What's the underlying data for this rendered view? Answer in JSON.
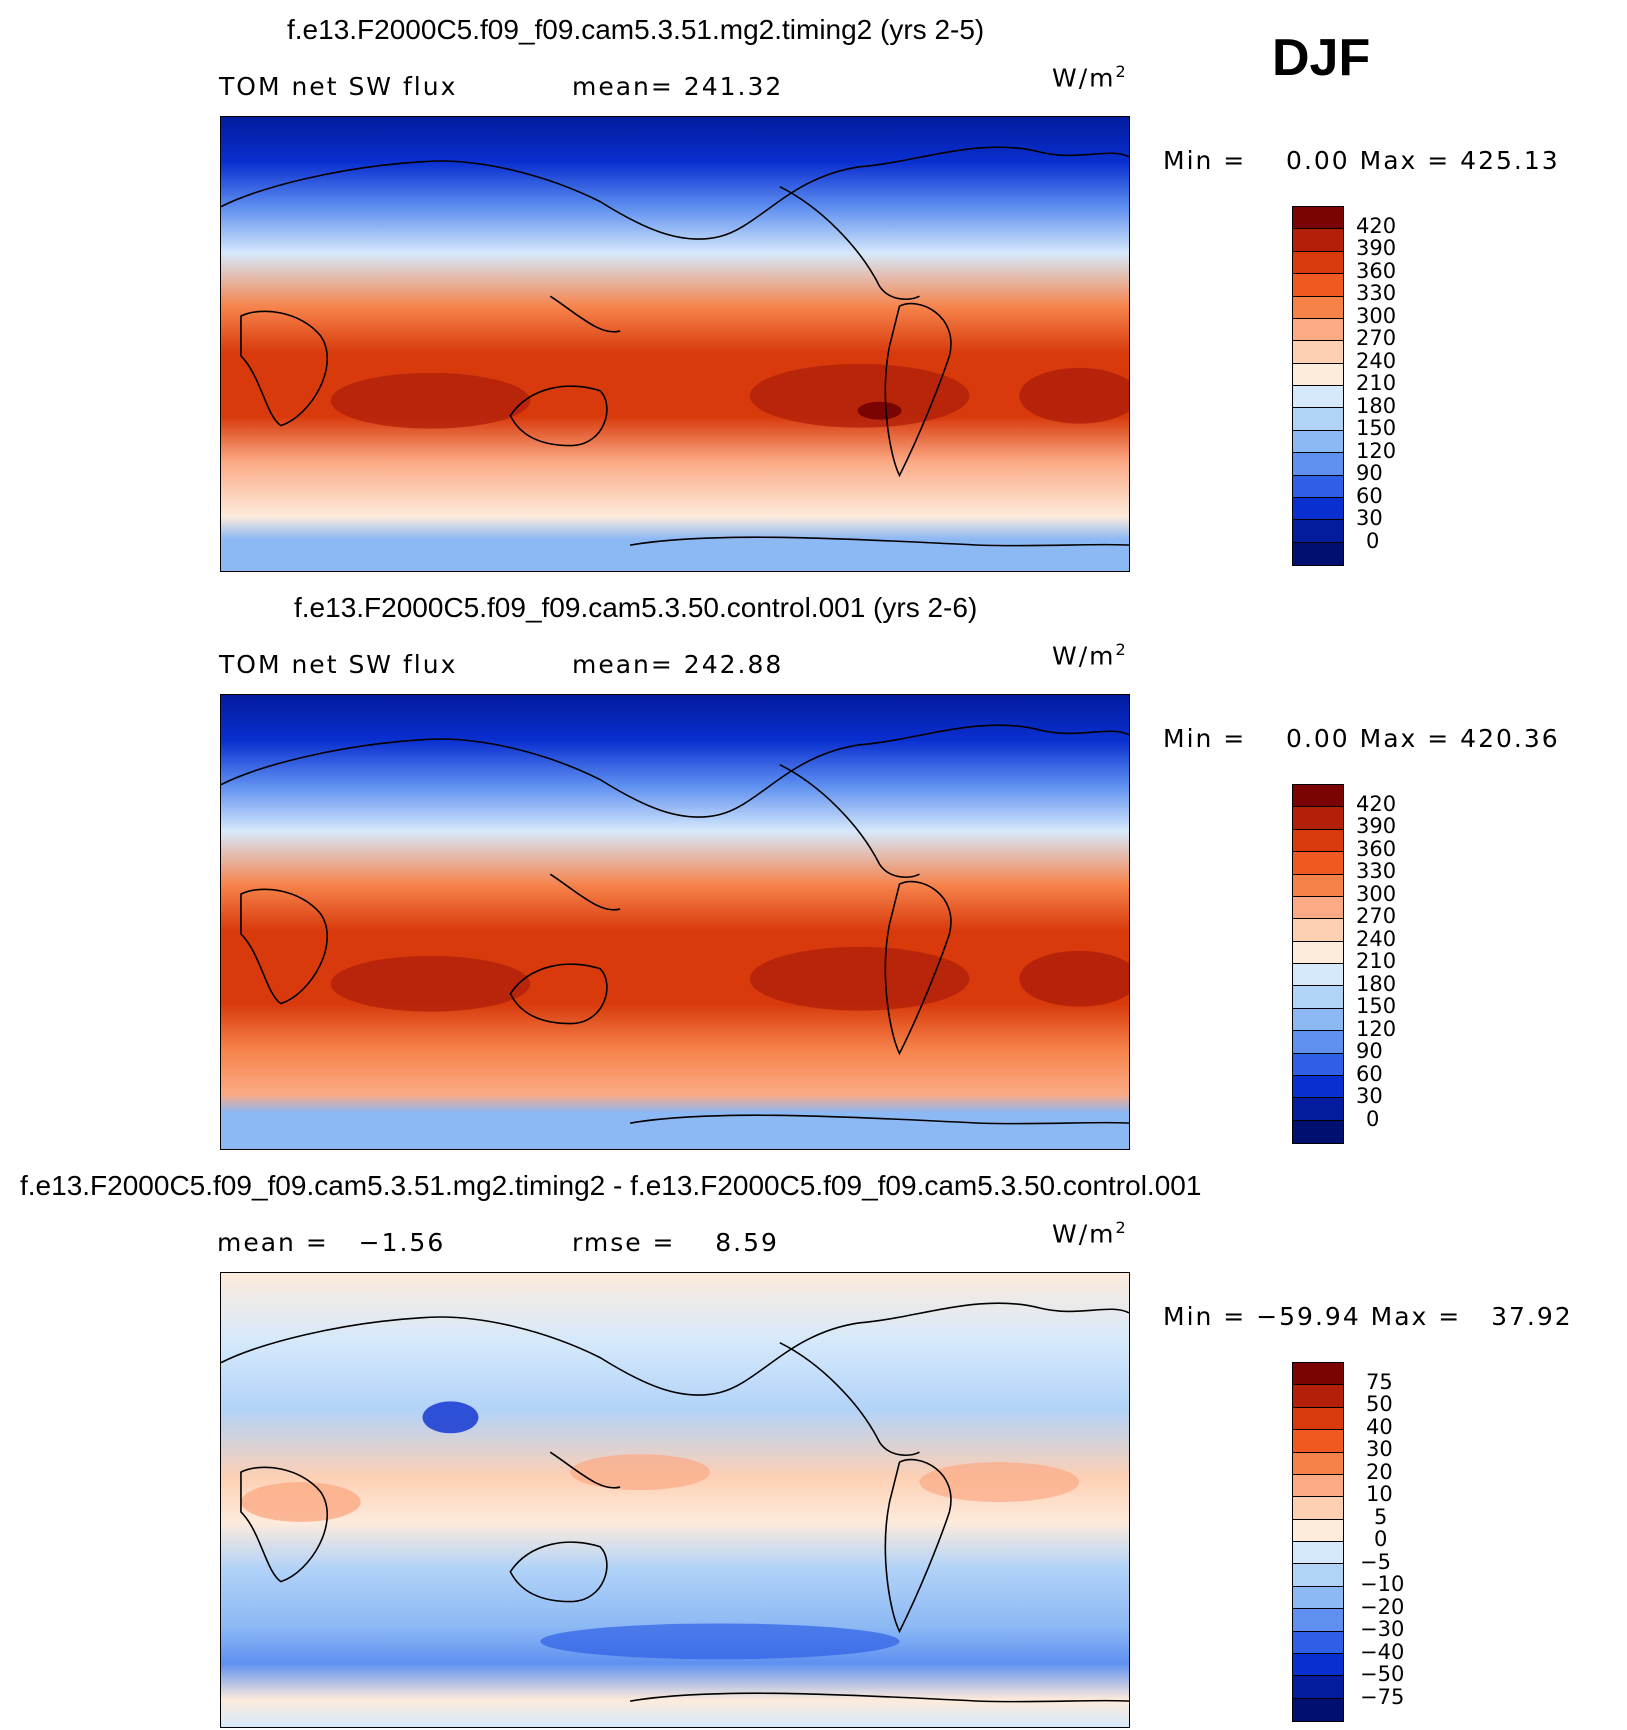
{
  "season": "DJF",
  "units_label": "W/m",
  "units_sup": "2",
  "panels": [
    {
      "title": "f.e13.F2000C5.f09_f09.cam5.3.51.mg2.timing2 (yrs 2-5)",
      "left_label": "TOM net SW flux",
      "center_label": "mean= 241.32",
      "minmax": "Min =    0.00 Max = 425.13",
      "colorbar_ticks": [
        "420",
        "390",
        "360",
        "330",
        "300",
        "270",
        "240",
        "210",
        "180",
        "150",
        "120",
        "90",
        "60",
        "30",
        "0"
      ],
      "colors": [
        "#7a0403",
        "#b2200a",
        "#d83a0c",
        "#f05a22",
        "#f6824a",
        "#fbaa85",
        "#fdd0b4",
        "#fdebdc",
        "#d6e9fb",
        "#b2d3f8",
        "#8cb8f4",
        "#5f90f0",
        "#2f5fe6",
        "#0a2fd0",
        "#031c9e",
        "#000f70"
      ]
    },
    {
      "title": "f.e13.F2000C5.f09_f09.cam5.3.50.control.001 (yrs 2-6)",
      "left_label": "TOM net SW flux",
      "center_label": "mean= 242.88",
      "minmax": "Min =    0.00 Max = 420.36",
      "colorbar_ticks": [
        "420",
        "390",
        "360",
        "330",
        "300",
        "270",
        "240",
        "210",
        "180",
        "150",
        "120",
        "90",
        "60",
        "30",
        "0"
      ],
      "colors": [
        "#7a0403",
        "#b2200a",
        "#d83a0c",
        "#f05a22",
        "#f6824a",
        "#fbaa85",
        "#fdd0b4",
        "#fdebdc",
        "#d6e9fb",
        "#b2d3f8",
        "#8cb8f4",
        "#5f90f0",
        "#2f5fe6",
        "#0a2fd0",
        "#031c9e",
        "#000f70"
      ]
    },
    {
      "title": "f.e13.F2000C5.f09_f09.cam5.3.51.mg2.timing2 - f.e13.F2000C5.f09_f09.cam5.3.50.control.001",
      "left_label": "mean =   −1.56",
      "center_label": "rmse =    8.59",
      "minmax": "Min = −59.94 Max =   37.92",
      "colorbar_ticks": [
        "75",
        "50",
        "40",
        "30",
        "20",
        "10",
        "5",
        "0",
        "−5",
        "−10",
        "−20",
        "−30",
        "−40",
        "−50",
        "−75"
      ],
      "colors": [
        "#7a0403",
        "#b2200a",
        "#d83a0c",
        "#f05a22",
        "#f6824a",
        "#fbaa85",
        "#fdd0b4",
        "#fdebdc",
        "#d6e9fb",
        "#b2d3f8",
        "#8cb8f4",
        "#5f90f0",
        "#2f5fe6",
        "#0a2fd0",
        "#031c9e",
        "#000f70"
      ]
    }
  ]
}
